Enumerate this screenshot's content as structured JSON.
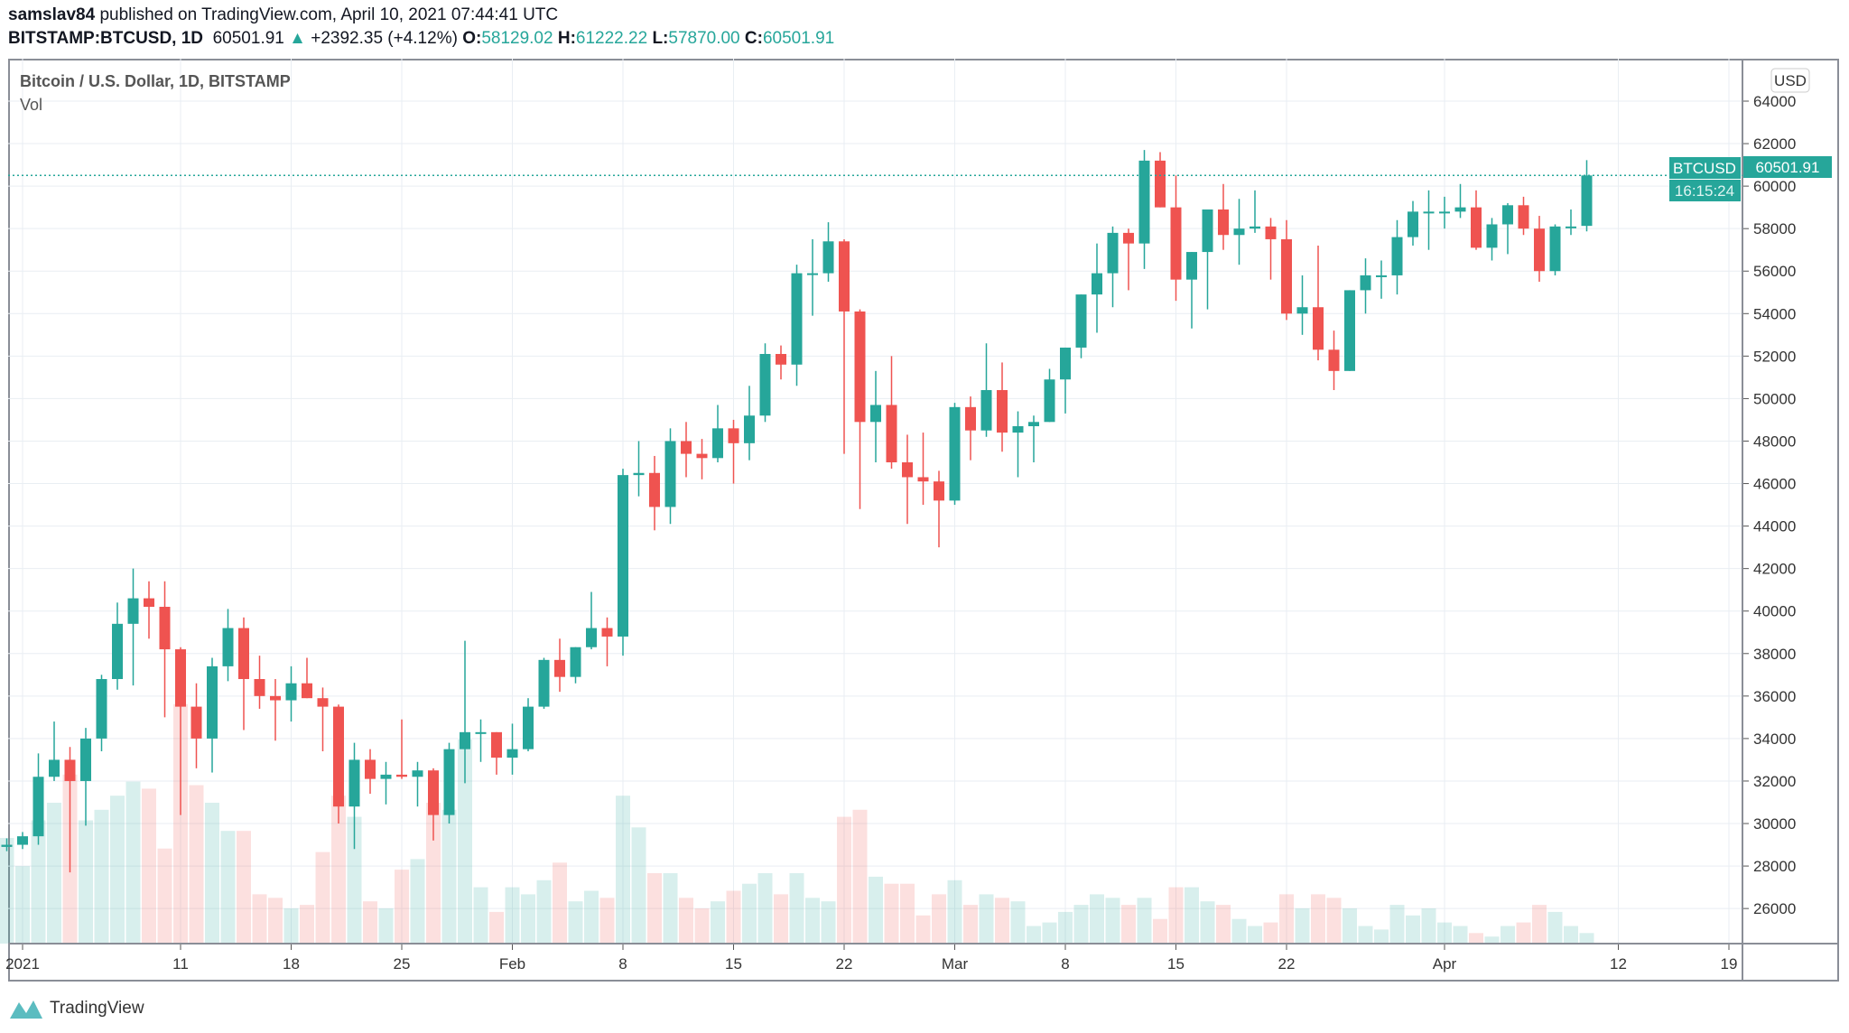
{
  "header": {
    "author": "samslav84",
    "published": "published on TradingView.com, April 10, 2021 07:44:41 UTC",
    "symbol": "BITSTAMP:BTCUSD, 1D",
    "last": "60501.91",
    "change": "+2392.35 (+4.12%)",
    "o_label": "O:",
    "o": "58129.02",
    "h_label": "H:",
    "h": "61222.22",
    "l_label": "L:",
    "l": "57870.00",
    "c_label": "C:",
    "c": "60501.91"
  },
  "legend": {
    "title": "Bitcoin / U.S. Dollar, 1D, BITSTAMP",
    "vol": "Vol"
  },
  "price_axis": {
    "currency": "USD",
    "tag_symbol": "BTCUSD",
    "tag_price": "60501.91",
    "tag_countdown": "16:15:24"
  },
  "footer": {
    "brand": "TradingView"
  },
  "colors": {
    "up": "#26a69a",
    "down": "#ef5350",
    "grid": "#e9eef3"
  },
  "chart_data": {
    "type": "candlestick",
    "title": "Bitcoin / U.S. Dollar, 1D, BITSTAMP",
    "ylim": [
      24500,
      65500
    ],
    "y_ticks": [
      "26000",
      "28000",
      "30000",
      "32000",
      "34000",
      "36000",
      "38000",
      "40000",
      "42000",
      "44000",
      "46000",
      "48000",
      "50000",
      "52000",
      "54000",
      "56000",
      "58000",
      "60000",
      "62000",
      "64000"
    ],
    "x_ticks": [
      {
        "day": 0,
        "label": "2021"
      },
      {
        "day": 10,
        "label": "11"
      },
      {
        "day": 17,
        "label": "18"
      },
      {
        "day": 24,
        "label": "25"
      },
      {
        "day": 31,
        "label": "Feb"
      },
      {
        "day": 38,
        "label": "8"
      },
      {
        "day": 45,
        "label": "15"
      },
      {
        "day": 52,
        "label": "22"
      },
      {
        "day": 59,
        "label": "Mar"
      },
      {
        "day": 66,
        "label": "8"
      },
      {
        "day": 73,
        "label": "15"
      },
      {
        "day": 80,
        "label": "22"
      },
      {
        "day": 90,
        "label": "Apr"
      },
      {
        "day": 101,
        "label": "12"
      },
      {
        "day": 108,
        "label": "19"
      }
    ],
    "candles_fields": [
      "day_from_jan1",
      "open",
      "high",
      "low",
      "close",
      "volume_relative"
    ],
    "candles": [
      [
        -1,
        28900,
        29300,
        28700,
        29000,
        30
      ],
      [
        0,
        29000,
        29600,
        28800,
        29400,
        22
      ],
      [
        1,
        29400,
        33300,
        29000,
        32200,
        35
      ],
      [
        2,
        32200,
        34800,
        32000,
        33000,
        40
      ],
      [
        3,
        33000,
        33600,
        27700,
        32000,
        48
      ],
      [
        4,
        32000,
        34500,
        29900,
        34000,
        35
      ],
      [
        5,
        34000,
        37000,
        33400,
        36800,
        38
      ],
      [
        6,
        36800,
        40400,
        36300,
        39400,
        42
      ],
      [
        7,
        39400,
        42000,
        36500,
        40600,
        46
      ],
      [
        8,
        40600,
        41400,
        38700,
        40200,
        44
      ],
      [
        9,
        40200,
        41400,
        35000,
        38200,
        27
      ],
      [
        10,
        38200,
        38300,
        30400,
        35500,
        68
      ],
      [
        11,
        35500,
        36600,
        32600,
        34000,
        45
      ],
      [
        12,
        34000,
        37800,
        32400,
        37400,
        40
      ],
      [
        13,
        37400,
        40100,
        36700,
        39200,
        32
      ],
      [
        14,
        39200,
        39700,
        34400,
        36800,
        32
      ],
      [
        15,
        36800,
        37900,
        35400,
        36000,
        14
      ],
      [
        16,
        36000,
        36800,
        33900,
        35800,
        13
      ],
      [
        17,
        35800,
        37400,
        34800,
        36600,
        10
      ],
      [
        18,
        36600,
        37800,
        35900,
        35900,
        11
      ],
      [
        19,
        35900,
        36400,
        33400,
        35500,
        26
      ],
      [
        20,
        35500,
        35600,
        30000,
        30800,
        42
      ],
      [
        21,
        30800,
        33800,
        28800,
        33000,
        36
      ],
      [
        22,
        33000,
        33500,
        31400,
        32100,
        12
      ],
      [
        23,
        32100,
        32900,
        30900,
        32300,
        10
      ],
      [
        24,
        32300,
        34900,
        32100,
        32200,
        21
      ],
      [
        25,
        32200,
        32900,
        30800,
        32500,
        24
      ],
      [
        26,
        32500,
        32600,
        29200,
        30400,
        40
      ],
      [
        27,
        30400,
        33800,
        30000,
        33500,
        38
      ],
      [
        28,
        33500,
        38600,
        31900,
        34300,
        58
      ],
      [
        29,
        34300,
        34900,
        32900,
        34300,
        16
      ],
      [
        30,
        34300,
        34300,
        32300,
        33100,
        9
      ],
      [
        31,
        33100,
        34700,
        32300,
        33500,
        16
      ],
      [
        32,
        33500,
        35900,
        33400,
        35500,
        14
      ],
      [
        33,
        35500,
        37800,
        35400,
        37700,
        18
      ],
      [
        34,
        37700,
        38700,
        36200,
        36900,
        23
      ],
      [
        35,
        36900,
        38300,
        36600,
        38300,
        12
      ],
      [
        36,
        38300,
        40900,
        38200,
        39200,
        15
      ],
      [
        37,
        39200,
        39700,
        37400,
        38800,
        13
      ],
      [
        38,
        38800,
        46700,
        37900,
        46400,
        42
      ],
      [
        39,
        46400,
        48000,
        45400,
        46500,
        33
      ],
      [
        40,
        46500,
        47300,
        43800,
        44900,
        20
      ],
      [
        41,
        44900,
        48600,
        44100,
        48000,
        20
      ],
      [
        42,
        48000,
        48900,
        46300,
        47400,
        13
      ],
      [
        43,
        47400,
        48100,
        46200,
        47200,
        10
      ],
      [
        44,
        47200,
        49700,
        47000,
        48600,
        12
      ],
      [
        45,
        48600,
        49000,
        46000,
        47900,
        15
      ],
      [
        46,
        47900,
        50600,
        47100,
        49200,
        17
      ],
      [
        47,
        49200,
        52600,
        48900,
        52100,
        20
      ],
      [
        48,
        52100,
        52500,
        50900,
        51600,
        14
      ],
      [
        49,
        51600,
        56300,
        50600,
        55900,
        20
      ],
      [
        50,
        55900,
        57500,
        53900,
        55900,
        13
      ],
      [
        51,
        55900,
        58300,
        55500,
        57400,
        12
      ],
      [
        52,
        57400,
        57500,
        47400,
        54100,
        36
      ],
      [
        53,
        54100,
        54200,
        44800,
        48900,
        38
      ],
      [
        54,
        48900,
        51300,
        47000,
        49700,
        19
      ],
      [
        55,
        49700,
        52000,
        46700,
        47000,
        17
      ],
      [
        56,
        47000,
        48300,
        44100,
        46300,
        17
      ],
      [
        57,
        46300,
        48400,
        45000,
        46100,
        8
      ],
      [
        58,
        46100,
        46600,
        43000,
        45200,
        14
      ],
      [
        59,
        45200,
        49800,
        45000,
        49600,
        18
      ],
      [
        60,
        49600,
        50100,
        47100,
        48500,
        11
      ],
      [
        61,
        48500,
        52600,
        48200,
        50400,
        14
      ],
      [
        62,
        50400,
        51700,
        47500,
        48400,
        13
      ],
      [
        63,
        48400,
        49400,
        46300,
        48700,
        12
      ],
      [
        64,
        48700,
        49200,
        47000,
        48900,
        5
      ],
      [
        65,
        48900,
        51400,
        48900,
        50900,
        6
      ],
      [
        66,
        50900,
        52400,
        49300,
        52400,
        9
      ],
      [
        67,
        52400,
        54900,
        51900,
        54900,
        11
      ],
      [
        68,
        54900,
        57300,
        53100,
        55900,
        14
      ],
      [
        69,
        55900,
        58100,
        54300,
        57800,
        13
      ],
      [
        70,
        57800,
        58000,
        55100,
        57300,
        11
      ],
      [
        71,
        57300,
        61700,
        56100,
        61200,
        13
      ],
      [
        72,
        61200,
        61600,
        59000,
        59000,
        7
      ],
      [
        73,
        59000,
        60500,
        54600,
        55600,
        16
      ],
      [
        74,
        55600,
        56900,
        53300,
        56900,
        16
      ],
      [
        75,
        56900,
        58900,
        54200,
        58900,
        12
      ],
      [
        76,
        58900,
        60100,
        57000,
        57700,
        11
      ],
      [
        77,
        57700,
        59400,
        56300,
        58000,
        7
      ],
      [
        78,
        58000,
        59800,
        57800,
        58100,
        5
      ],
      [
        79,
        58100,
        58500,
        55600,
        57500,
        6
      ],
      [
        80,
        57500,
        58400,
        53700,
        54000,
        14
      ],
      [
        81,
        54000,
        55800,
        53000,
        54300,
        10
      ],
      [
        82,
        54300,
        57200,
        51800,
        52300,
        14
      ],
      [
        83,
        52300,
        53200,
        50400,
        51300,
        13
      ],
      [
        84,
        51300,
        55100,
        51300,
        55100,
        10
      ],
      [
        85,
        55100,
        56600,
        54000,
        55800,
        5
      ],
      [
        86,
        55800,
        56500,
        54700,
        55800,
        4
      ],
      [
        87,
        55800,
        58400,
        54900,
        57600,
        11
      ],
      [
        88,
        57600,
        59300,
        57200,
        58800,
        8
      ],
      [
        89,
        58800,
        59800,
        57000,
        58800,
        10
      ],
      [
        90,
        58800,
        59500,
        58000,
        58800,
        6
      ],
      [
        91,
        58800,
        60100,
        58500,
        59000,
        5
      ],
      [
        92,
        59000,
        59800,
        57000,
        57100,
        3
      ],
      [
        93,
        57100,
        58500,
        56500,
        58200,
        2
      ],
      [
        94,
        58200,
        59200,
        56800,
        59100,
        5
      ],
      [
        95,
        59100,
        59500,
        57700,
        58000,
        6
      ],
      [
        96,
        58000,
        58600,
        55500,
        56000,
        11
      ],
      [
        97,
        56000,
        58200,
        55800,
        58100,
        9
      ],
      [
        98,
        58100,
        58900,
        57700,
        58100,
        5
      ],
      [
        99,
        58129.02,
        61222.22,
        57870,
        60501.91,
        3
      ]
    ]
  }
}
